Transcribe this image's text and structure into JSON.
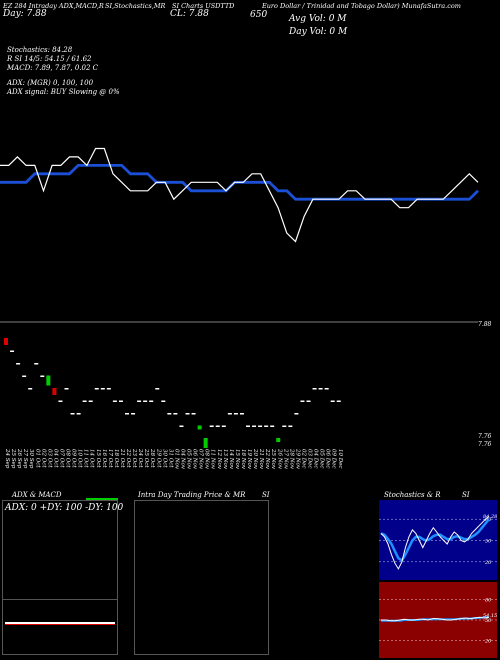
{
  "header": {
    "ticker_line": "EZ 284 Intraday ADX,MACD,R",
    "rsi_stoch_line": "SI,Stochastics,MR",
    "currency_line": "SI Charts USDTTD",
    "title_line": "Euro Dollar / Trinidad and Tobago Dollar) MunafaSutra.com",
    "close_label": "CL: 7.88",
    "day_label": "Day: 7.88",
    "value_650": "650",
    "avg_vol": "Avg Vol: 0   M",
    "day_vol": "Day Vol: 0   M",
    "stochastics": "Stochastics: 84.28",
    "rsi_line": "R   SI 14/5: 54.15 / 61.62",
    "macd_line": "MACD: 7.89, 7.87, 0.02  C",
    "adx_line": "ADX:                        (MGR) 0,  100,  100",
    "adx_signal": "ADX  signal:                    BUY Slowing @ 0%"
  },
  "colors": {
    "price": "#ffffff",
    "ma": "#1a4fd6",
    "bull": "#00cc00",
    "bear": "#dd0000",
    "rsi_bg": "#8b0000",
    "stoch_bg": "#00008b"
  },
  "price_axis_label": "7.88",
  "volume_axis_labels": [
    "7.76",
    "7.76"
  ],
  "chart_data": [
    {
      "type": "line",
      "name": "price",
      "x": [
        "24 Sep",
        "25 Sep",
        "26 Sep",
        "27 Sep",
        "30 Sep",
        "01 Oct",
        "02 Oct",
        "03 Oct",
        "04 Oct",
        "07 Oct",
        "08 Oct",
        "09 Oct",
        "10 Oct",
        "11 Oct",
        "14 Oct",
        "15 Oct",
        "16 Oct",
        "17 Oct",
        "18 Oct",
        "21 Oct",
        "22 Oct",
        "23 Oct",
        "24 Oct",
        "25 Oct",
        "28 Oct",
        "29 Oct",
        "30 Oct",
        "31 Oct",
        "01 Nov",
        "04 Nov",
        "05 Nov",
        "06 Nov",
        "07 Nov",
        "08 Nov",
        "11 Nov",
        "12 Nov",
        "13 Nov",
        "14 Nov",
        "15 Nov",
        "18 Nov",
        "19 Nov",
        "20 Nov",
        "21 Nov",
        "22 Nov",
        "25 Nov",
        "26 Nov",
        "27 Nov",
        "28 Nov",
        "29 Nov",
        "02 Dec",
        "03 Dec",
        "04 Dec",
        "05 Dec",
        "06 Dec",
        "09 Dec",
        "10 Dec"
      ],
      "series": [
        {
          "values": [
            7.9,
            7.9,
            7.91,
            7.9,
            7.9,
            7.87,
            7.9,
            7.9,
            7.91,
            7.91,
            7.9,
            7.92,
            7.92,
            7.89,
            7.88,
            7.87,
            7.87,
            7.87,
            7.88,
            7.88,
            7.86,
            7.87,
            7.88,
            7.88,
            7.88,
            7.88,
            7.87,
            7.88,
            7.88,
            7.89,
            7.89,
            7.87,
            7.85,
            7.82,
            7.81,
            7.84,
            7.86,
            7.86,
            7.86,
            7.86,
            7.87,
            7.87,
            7.86,
            7.86,
            7.86,
            7.86,
            7.85,
            7.85,
            7.86,
            7.86,
            7.86,
            7.86,
            7.87,
            7.88,
            7.89,
            7.88
          ]
        },
        {
          "values": [
            7.88,
            7.88,
            7.88,
            7.88,
            7.89,
            7.89,
            7.89,
            7.89,
            7.89,
            7.9,
            7.9,
            7.9,
            7.9,
            7.9,
            7.9,
            7.89,
            7.89,
            7.89,
            7.88,
            7.88,
            7.88,
            7.88,
            7.87,
            7.87,
            7.87,
            7.87,
            7.87,
            7.88,
            7.88,
            7.88,
            7.88,
            7.88,
            7.87,
            7.87,
            7.86,
            7.86,
            7.86,
            7.86,
            7.86,
            7.86,
            7.86,
            7.86,
            7.86,
            7.86,
            7.86,
            7.86,
            7.86,
            7.86,
            7.86,
            7.86,
            7.86,
            7.86,
            7.86,
            7.86,
            7.86,
            7.87
          ]
        }
      ]
    },
    {
      "type": "scatter",
      "name": "volume-dots",
      "series": [
        {
          "values": [
            8,
            7,
            6,
            5,
            4,
            6,
            5,
            5,
            4,
            3,
            4,
            2,
            2,
            3,
            3,
            4,
            4,
            4,
            3,
            3,
            2,
            2,
            3,
            3,
            3,
            4,
            3,
            2,
            2,
            1,
            2,
            2,
            1,
            0,
            1,
            1,
            1,
            2,
            2,
            2,
            1,
            1,
            1,
            1,
            1,
            0,
            1,
            1,
            2,
            3,
            3,
            4,
            4,
            4,
            3,
            3
          ]
        }
      ]
    },
    {
      "type": "line",
      "name": "stochastics",
      "series": [
        {
          "values": [
            60,
            55,
            45,
            30,
            18,
            10,
            20,
            40,
            55,
            65,
            60,
            50,
            40,
            50,
            60,
            68,
            62,
            55,
            50,
            45,
            55,
            62,
            58,
            50,
            48,
            52,
            60,
            65,
            70,
            75,
            80,
            84
          ]
        },
        {
          "values": [
            60,
            58,
            52,
            45,
            35,
            25,
            22,
            30,
            40,
            50,
            55,
            55,
            52,
            50,
            52,
            56,
            58,
            58,
            55,
            52,
            52,
            55,
            56,
            54,
            52,
            52,
            55,
            58,
            62,
            68,
            74,
            80
          ]
        }
      ],
      "ticks": [
        "80",
        "50",
        "20"
      ]
    },
    {
      "type": "line",
      "name": "rsi",
      "series": [
        {
          "values": [
            50,
            50,
            49,
            49,
            50,
            51,
            50,
            50,
            51,
            51,
            50,
            52,
            52,
            51,
            50,
            50,
            51,
            52,
            53,
            52,
            53,
            54,
            53,
            54
          ]
        },
        {
          "values": [
            49,
            49,
            49,
            49,
            49,
            50,
            50,
            50,
            50,
            51,
            51,
            51,
            51,
            51,
            51,
            51,
            51,
            52,
            52,
            52,
            53,
            53,
            54,
            54
          ]
        }
      ],
      "ticks": [
        "80",
        "50",
        "20"
      ],
      "last_value": "54.15"
    }
  ],
  "bottom_panels": {
    "adx_title": "ADX  & MACD",
    "adx_values": "ADX: 0   +DY: 100   -DY: 100",
    "intraday_title": "Intra  Day Trading Price  & MR",
    "intraday_si": "SI",
    "stoch_title": "Stochastics & R",
    "stoch_si": "SI",
    "stoch_last": "84.28",
    "rsi_last": "54.15"
  }
}
